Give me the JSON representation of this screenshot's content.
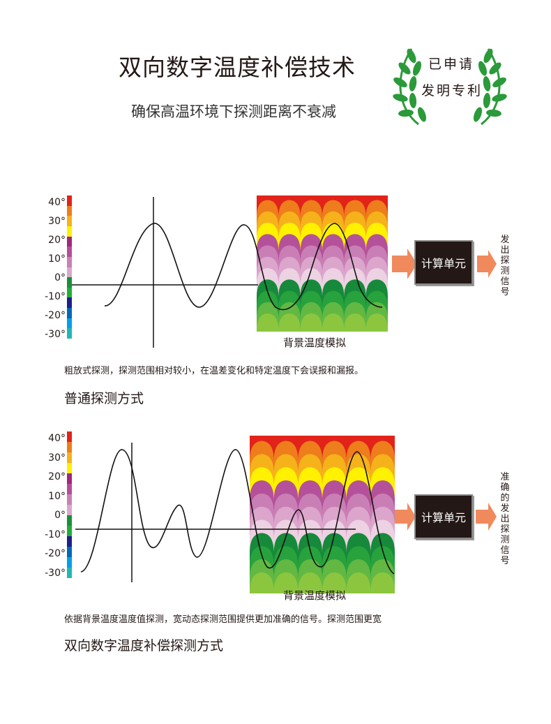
{
  "header": {
    "title": "双向数字温度补偿技术",
    "subtitle": "确保高温环境下探测距离不衰减",
    "badge_line1": "已申请",
    "badge_line2": "发明专利"
  },
  "colors": {
    "scale": [
      "#e2231a",
      "#ee7d1c",
      "#f6b21b",
      "#fff100",
      "#a0267e",
      "#b64d97",
      "#c881b4",
      "#d9a7cc",
      "#1a8f3b",
      "#22ac38",
      "#1d2088",
      "#0068b7",
      "#00a0e9",
      "#22b7b5"
    ],
    "band_fill": [
      "#e2231a",
      "#ee7d1c",
      "#f6b21b",
      "#fff100",
      "#b5519a",
      "#c97fb5",
      "#dca6cc",
      "#ecd2e2",
      "#168a3a",
      "#28a23c",
      "#62b843",
      "#8cc63f"
    ]
  },
  "y_ticks": [
    "40°",
    "30°",
    "20°",
    "10°",
    "0°",
    "-10°",
    "-20°",
    "-30°"
  ],
  "panel1": {
    "bg_label": "背景温度模拟",
    "processor_label": "计算单元",
    "output_label": "发出探测信号",
    "caption": "粗放式探测，探测范围相对较小，在温差变化和特定温度下会误报和漏报。",
    "section_title": "普通探测方式"
  },
  "panel2": {
    "bg_label": "背景温度模拟",
    "processor_label": "计算单元",
    "output_label": "准确的发出探测信号",
    "caption": "依据背景温度温度值探测，宽动态探测范围提供更加准确的信号。探测范围更宽",
    "section_title": "双向数字温度补偿探测方式"
  }
}
